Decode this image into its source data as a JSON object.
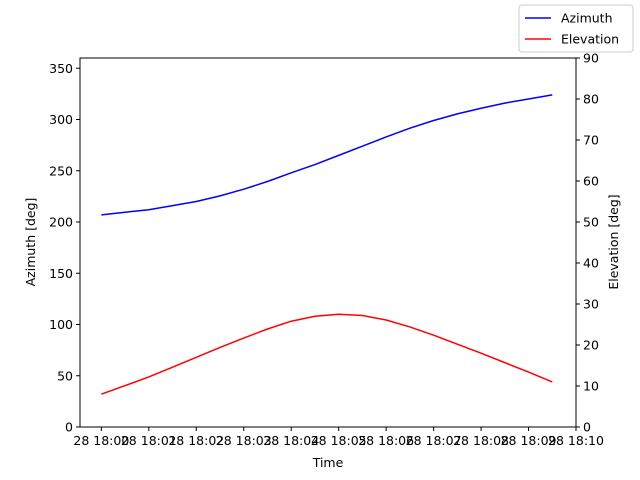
{
  "chart_data": {
    "type": "line",
    "x": [
      0,
      0.5,
      1,
      1.5,
      2,
      2.5,
      3,
      3.5,
      4,
      4.5,
      5,
      5.5,
      6,
      6.5,
      7,
      7.5,
      8,
      8.5,
      9,
      9.5
    ],
    "xlim": [
      -0.45,
      10.0
    ],
    "xticks": [
      {
        "value": 0,
        "label": "28 18:00"
      },
      {
        "value": 1,
        "label": "28 18:01"
      },
      {
        "value": 2,
        "label": "28 18:02"
      },
      {
        "value": 3,
        "label": "28 18:03"
      },
      {
        "value": 4,
        "label": "28 18:04"
      },
      {
        "value": 5,
        "label": "28 18:05"
      },
      {
        "value": 6,
        "label": "28 18:06"
      },
      {
        "value": 7,
        "label": "28 18:07"
      },
      {
        "value": 8,
        "label": "28 18:08"
      },
      {
        "value": 9,
        "label": "28 18:09"
      },
      {
        "value": 10,
        "label": "28 18:10"
      }
    ],
    "xlabel": "Time",
    "ylabel": "Azimuth [deg]",
    "ylim": [
      0,
      360
    ],
    "yticks": [
      0,
      50,
      100,
      150,
      200,
      250,
      300,
      350
    ],
    "y2label": "Elevation [deg]",
    "y2lim": [
      0,
      90
    ],
    "y2ticks": [
      0,
      10,
      20,
      30,
      40,
      50,
      60,
      70,
      80,
      90
    ],
    "legend": "upper right",
    "series": [
      {
        "name": "Azimuth",
        "color": "#0000ff",
        "axis": "y",
        "values": [
          207,
          209.5,
          212,
          216,
          220,
          225.5,
          232,
          239.5,
          248,
          256,
          265,
          274,
          283,
          291.5,
          299,
          305.5,
          311,
          316,
          320,
          324
        ]
      },
      {
        "name": "Elevation",
        "color": "#ff0000",
        "axis": "y2",
        "values": [
          8.0,
          10.1,
          12.2,
          14.6,
          17.0,
          19.4,
          21.7,
          23.9,
          25.8,
          27.0,
          27.5,
          27.2,
          26.1,
          24.4,
          22.4,
          20.2,
          18.0,
          15.7,
          13.4,
          11.0
        ]
      }
    ]
  }
}
